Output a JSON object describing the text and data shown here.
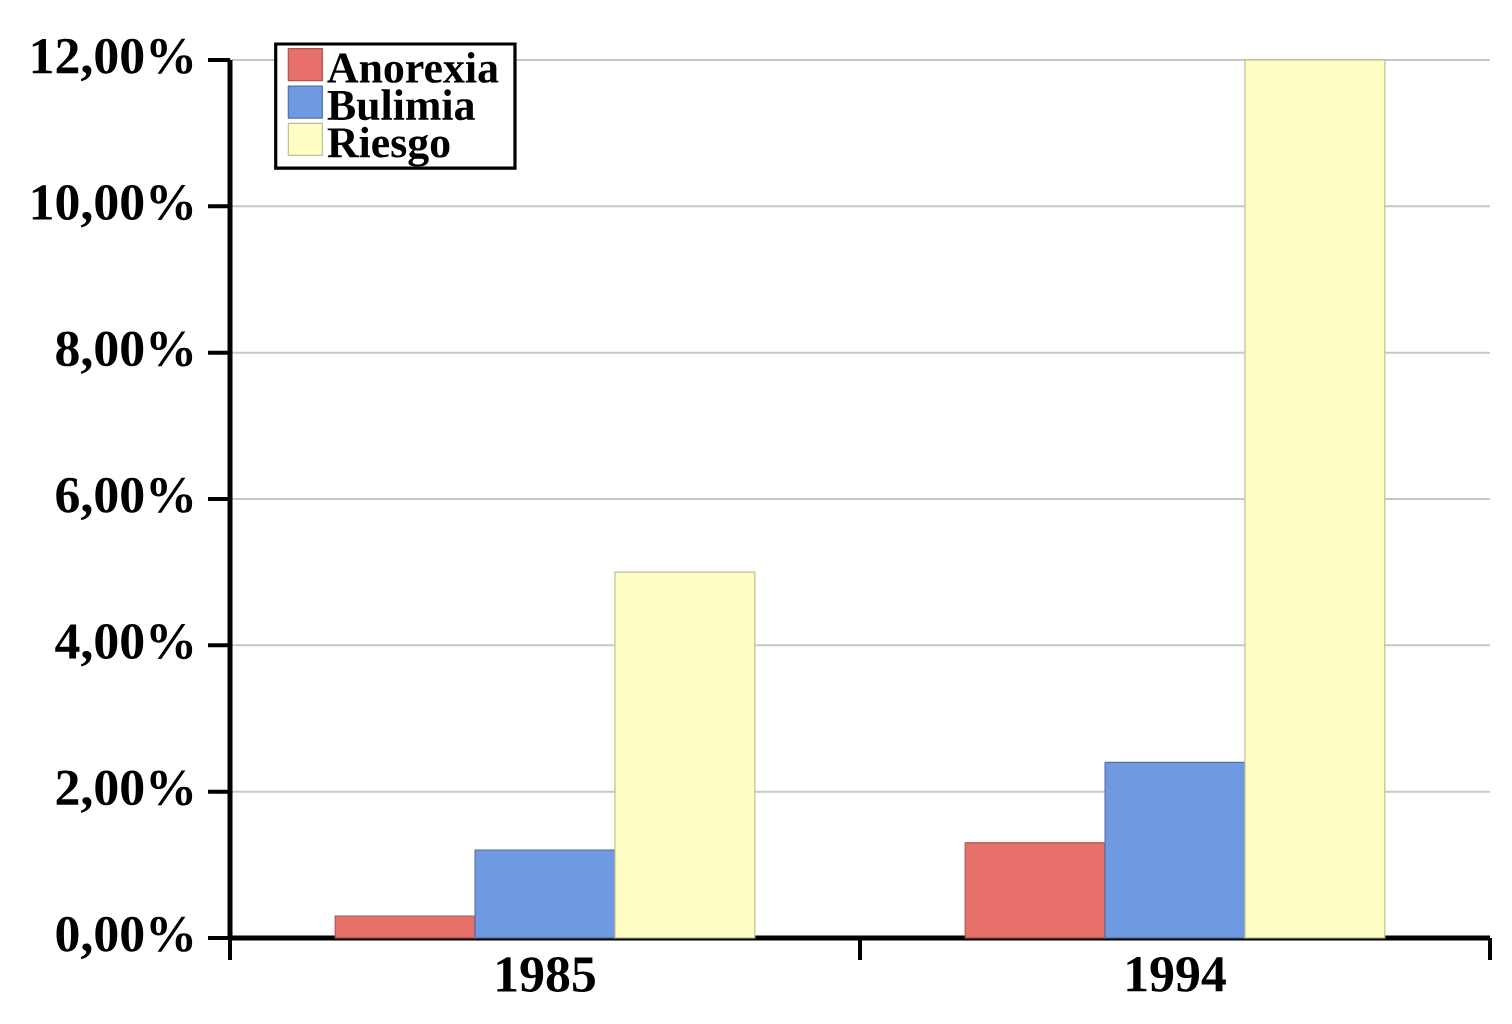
{
  "chart_data": {
    "type": "bar",
    "categories": [
      "1985",
      "1994"
    ],
    "series": [
      {
        "name": "Anorexia",
        "color": "#e8706a",
        "values": [
          0.3,
          1.3
        ]
      },
      {
        "name": "Bulimia",
        "color": "#6f99e0",
        "values": [
          1.2,
          2.4
        ]
      },
      {
        "name": "Riesgo",
        "color": "#ffffc4",
        "values": [
          5.0,
          12.0
        ]
      }
    ],
    "ylim": [
      0,
      12
    ],
    "yticks": [
      {
        "value": 0,
        "label": "0,00%"
      },
      {
        "value": 2,
        "label": "2,00%"
      },
      {
        "value": 4,
        "label": "4,00%"
      },
      {
        "value": 6,
        "label": "6,00%"
      },
      {
        "value": 8,
        "label": "8,00%"
      },
      {
        "value": 10,
        "label": "10,00%"
      },
      {
        "value": 12,
        "label": "12,00%"
      }
    ],
    "grid": "y",
    "legend": "top left"
  }
}
